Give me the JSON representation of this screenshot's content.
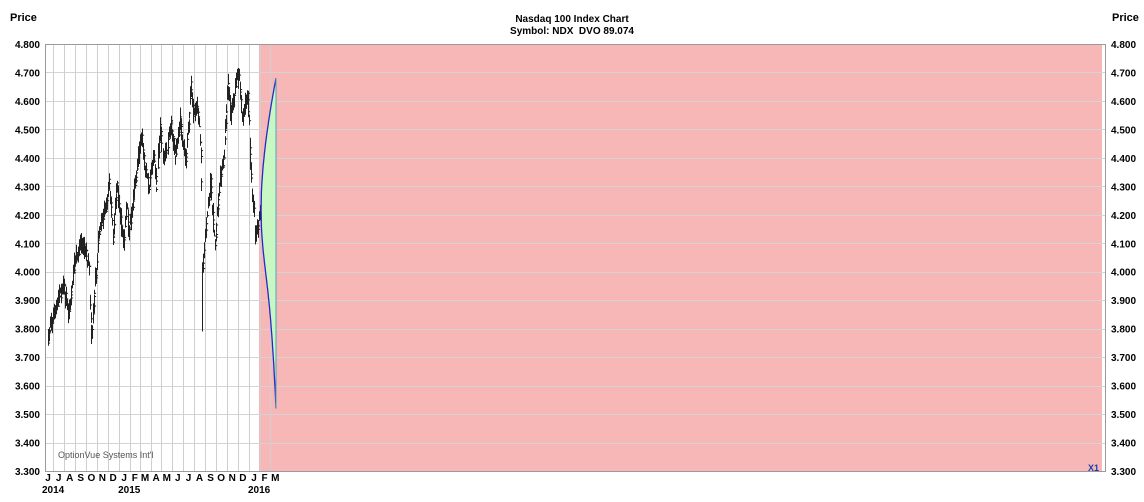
{
  "chart_data": {
    "type": "bar",
    "style": "OHLC price bars with probability cone",
    "title": "Nasdaq 100 Index Chart",
    "subtitle": "Symbol: NDX  DVO 89.074",
    "ylabel_left": "Price",
    "ylabel_right": "Price",
    "ylim": [
      3.3,
      4.8
    ],
    "yticks": [
      "4.800",
      "4.700",
      "4.600",
      "4.500",
      "4.400",
      "4.300",
      "4.200",
      "4.100",
      "4.000",
      "3.900",
      "3.800",
      "3.700",
      "3.600",
      "3.500",
      "3.400",
      "3.300"
    ],
    "xticks": [
      {
        "label": "J",
        "year": "2014"
      },
      {
        "label": "J",
        "year": ""
      },
      {
        "label": "A",
        "year": ""
      },
      {
        "label": "S",
        "year": ""
      },
      {
        "label": "O",
        "year": ""
      },
      {
        "label": "N",
        "year": ""
      },
      {
        "label": "D",
        "year": ""
      },
      {
        "label": "J",
        "year": "2015"
      },
      {
        "label": "F",
        "year": ""
      },
      {
        "label": "M",
        "year": ""
      },
      {
        "label": "A",
        "year": ""
      },
      {
        "label": "M",
        "year": ""
      },
      {
        "label": "J",
        "year": ""
      },
      {
        "label": "J",
        "year": ""
      },
      {
        "label": "A",
        "year": ""
      },
      {
        "label": "S",
        "year": ""
      },
      {
        "label": "O",
        "year": ""
      },
      {
        "label": "N",
        "year": ""
      },
      {
        "label": "D",
        "year": ""
      },
      {
        "label": "J",
        "year": "2016"
      },
      {
        "label": "F",
        "year": ""
      },
      {
        "label": "M",
        "year": ""
      }
    ],
    "grid": true,
    "price_path_keypoints": [
      {
        "date": "2014-06-17",
        "value": 3.77
      },
      {
        "date": "2014-07-01",
        "value": 3.84
      },
      {
        "date": "2014-07-15",
        "value": 3.9
      },
      {
        "date": "2014-07-31",
        "value": 3.96
      },
      {
        "date": "2014-08-08",
        "value": 3.87
      },
      {
        "date": "2014-08-15",
        "value": 3.86
      },
      {
        "date": "2014-08-29",
        "value": 4.03
      },
      {
        "date": "2014-09-19",
        "value": 4.1
      },
      {
        "date": "2014-10-01",
        "value": 4.06
      },
      {
        "date": "2014-10-10",
        "value": 4.0
      },
      {
        "date": "2014-10-16",
        "value": 3.77
      },
      {
        "date": "2014-10-27",
        "value": 3.97
      },
      {
        "date": "2014-11-07",
        "value": 4.15
      },
      {
        "date": "2014-11-28",
        "value": 4.24
      },
      {
        "date": "2014-12-05",
        "value": 4.32
      },
      {
        "date": "2014-12-16",
        "value": 4.12
      },
      {
        "date": "2014-12-26",
        "value": 4.3
      },
      {
        "date": "2015-01-05",
        "value": 4.19
      },
      {
        "date": "2015-01-15",
        "value": 4.11
      },
      {
        "date": "2015-01-22",
        "value": 4.23
      },
      {
        "date": "2015-01-30",
        "value": 4.14
      },
      {
        "date": "2015-02-13",
        "value": 4.29
      },
      {
        "date": "2015-02-27",
        "value": 4.43
      },
      {
        "date": "2015-03-06",
        "value": 4.47
      },
      {
        "date": "2015-03-16",
        "value": 4.36
      },
      {
        "date": "2015-03-26",
        "value": 4.3
      },
      {
        "date": "2015-04-10",
        "value": 4.41
      },
      {
        "date": "2015-04-17",
        "value": 4.3
      },
      {
        "date": "2015-04-27",
        "value": 4.52
      },
      {
        "date": "2015-05-06",
        "value": 4.4
      },
      {
        "date": "2015-05-18",
        "value": 4.45
      },
      {
        "date": "2015-05-29",
        "value": 4.52
      },
      {
        "date": "2015-06-08",
        "value": 4.41
      },
      {
        "date": "2015-06-22",
        "value": 4.53
      },
      {
        "date": "2015-07-08",
        "value": 4.38
      },
      {
        "date": "2015-07-17",
        "value": 4.54
      },
      {
        "date": "2015-07-22",
        "value": 4.66
      },
      {
        "date": "2015-07-31",
        "value": 4.55
      },
      {
        "date": "2015-08-10",
        "value": 4.57
      },
      {
        "date": "2015-08-20",
        "value": 4.41
      },
      {
        "date": "2015-08-24",
        "value": 4.0
      },
      {
        "date": "2015-09-01",
        "value": 4.13
      },
      {
        "date": "2015-09-16",
        "value": 4.33
      },
      {
        "date": "2015-09-28",
        "value": 4.08
      },
      {
        "date": "2015-10-12",
        "value": 4.32
      },
      {
        "date": "2015-10-23",
        "value": 4.4
      },
      {
        "date": "2015-11-03",
        "value": 4.66
      },
      {
        "date": "2015-11-13",
        "value": 4.55
      },
      {
        "date": "2015-11-25",
        "value": 4.67
      },
      {
        "date": "2015-12-03",
        "value": 4.68
      },
      {
        "date": "2015-12-14",
        "value": 4.54
      },
      {
        "date": "2015-12-29",
        "value": 4.63
      },
      {
        "date": "2016-01-07",
        "value": 4.34
      },
      {
        "date": "2016-01-20",
        "value": 4.12
      },
      {
        "date": "2016-01-29",
        "value": 4.19
      },
      {
        "date": "2016-02-05",
        "value": 4.23
      }
    ],
    "lowest_low": {
      "date": "2015-08-24",
      "value": 3.79
    },
    "projection": {
      "start": {
        "date": "2016-02-05",
        "value": 4.22
      },
      "end_date": "2016-03-18",
      "upper_end": 4.68,
      "lower_end": 3.52,
      "upper_color": "#c9f7c4",
      "band_color": "#f7b7b7",
      "line_color": "#2828c8"
    },
    "watermark": "OptionVue Systems Int'l",
    "corner_label": "X1"
  }
}
